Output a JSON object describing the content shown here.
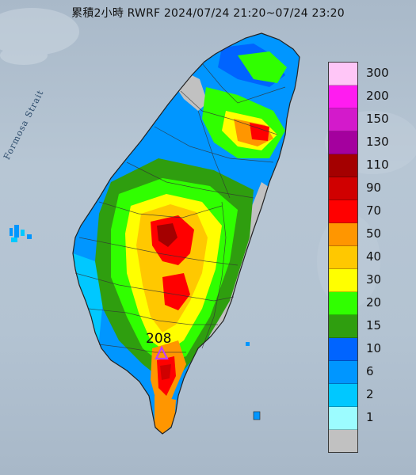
{
  "title": "累積2小時 RWRF 2024/07/24 21:20~07/24 23:20",
  "strait_label": "Formosa Strait",
  "peak_value": "208",
  "legend": {
    "levels": [
      {
        "label": "300",
        "color": "#ffc6f7"
      },
      {
        "label": "200",
        "color": "#ff1cf0"
      },
      {
        "label": "150",
        "color": "#d31acb"
      },
      {
        "label": "130",
        "color": "#a4009e"
      },
      {
        "label": "110",
        "color": "#a40000"
      },
      {
        "label": "90",
        "color": "#d00000"
      },
      {
        "label": "70",
        "color": "#ff0000"
      },
      {
        "label": "50",
        "color": "#ff9600"
      },
      {
        "label": "40",
        "color": "#ffc800"
      },
      {
        "label": "30",
        "color": "#ffff00"
      },
      {
        "label": "20",
        "color": "#30ff00"
      },
      {
        "label": "15",
        "color": "#2f9e0f"
      },
      {
        "label": "10",
        "color": "#0064ff"
      },
      {
        "label": "6",
        "color": "#0096ff"
      },
      {
        "label": "2",
        "color": "#00c8ff"
      },
      {
        "label": "1",
        "color": "#9cfcff"
      },
      {
        "label": "",
        "color": "#c1c1c1"
      }
    ]
  },
  "peak_marker_color": "#c03cff"
}
